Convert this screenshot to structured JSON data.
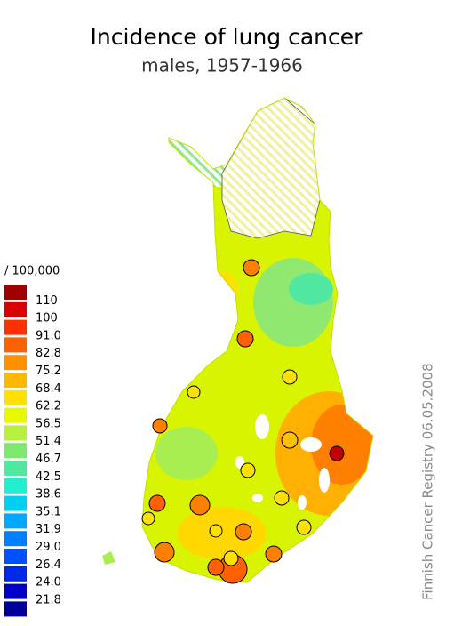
{
  "title": "Incidence of lung cancer",
  "subtitle": "males, 1957-1966",
  "legend": {
    "unit": "/ 100,000",
    "labels": [
      "110",
      "100",
      "91.0",
      "82.8",
      "75.2",
      "68.4",
      "62.2",
      "56.5",
      "51.4",
      "46.7",
      "42.5",
      "38.6",
      "35.1",
      "31.9",
      "29.0",
      "26.4",
      "24.0",
      "21.8"
    ],
    "colors": [
      "#a00000",
      "#d80000",
      "#ff3000",
      "#ff6000",
      "#ff9000",
      "#ffb800",
      "#ffe000",
      "#e8f800",
      "#b8f040",
      "#80e870",
      "#50e8a0",
      "#20f0d0",
      "#00d0f0",
      "#00a8ff",
      "#0080ff",
      "#0050ff",
      "#0028e8",
      "#0000c8",
      "#000098"
    ]
  },
  "credit": "Finnish Cancer Registry 06.05.2008"
}
